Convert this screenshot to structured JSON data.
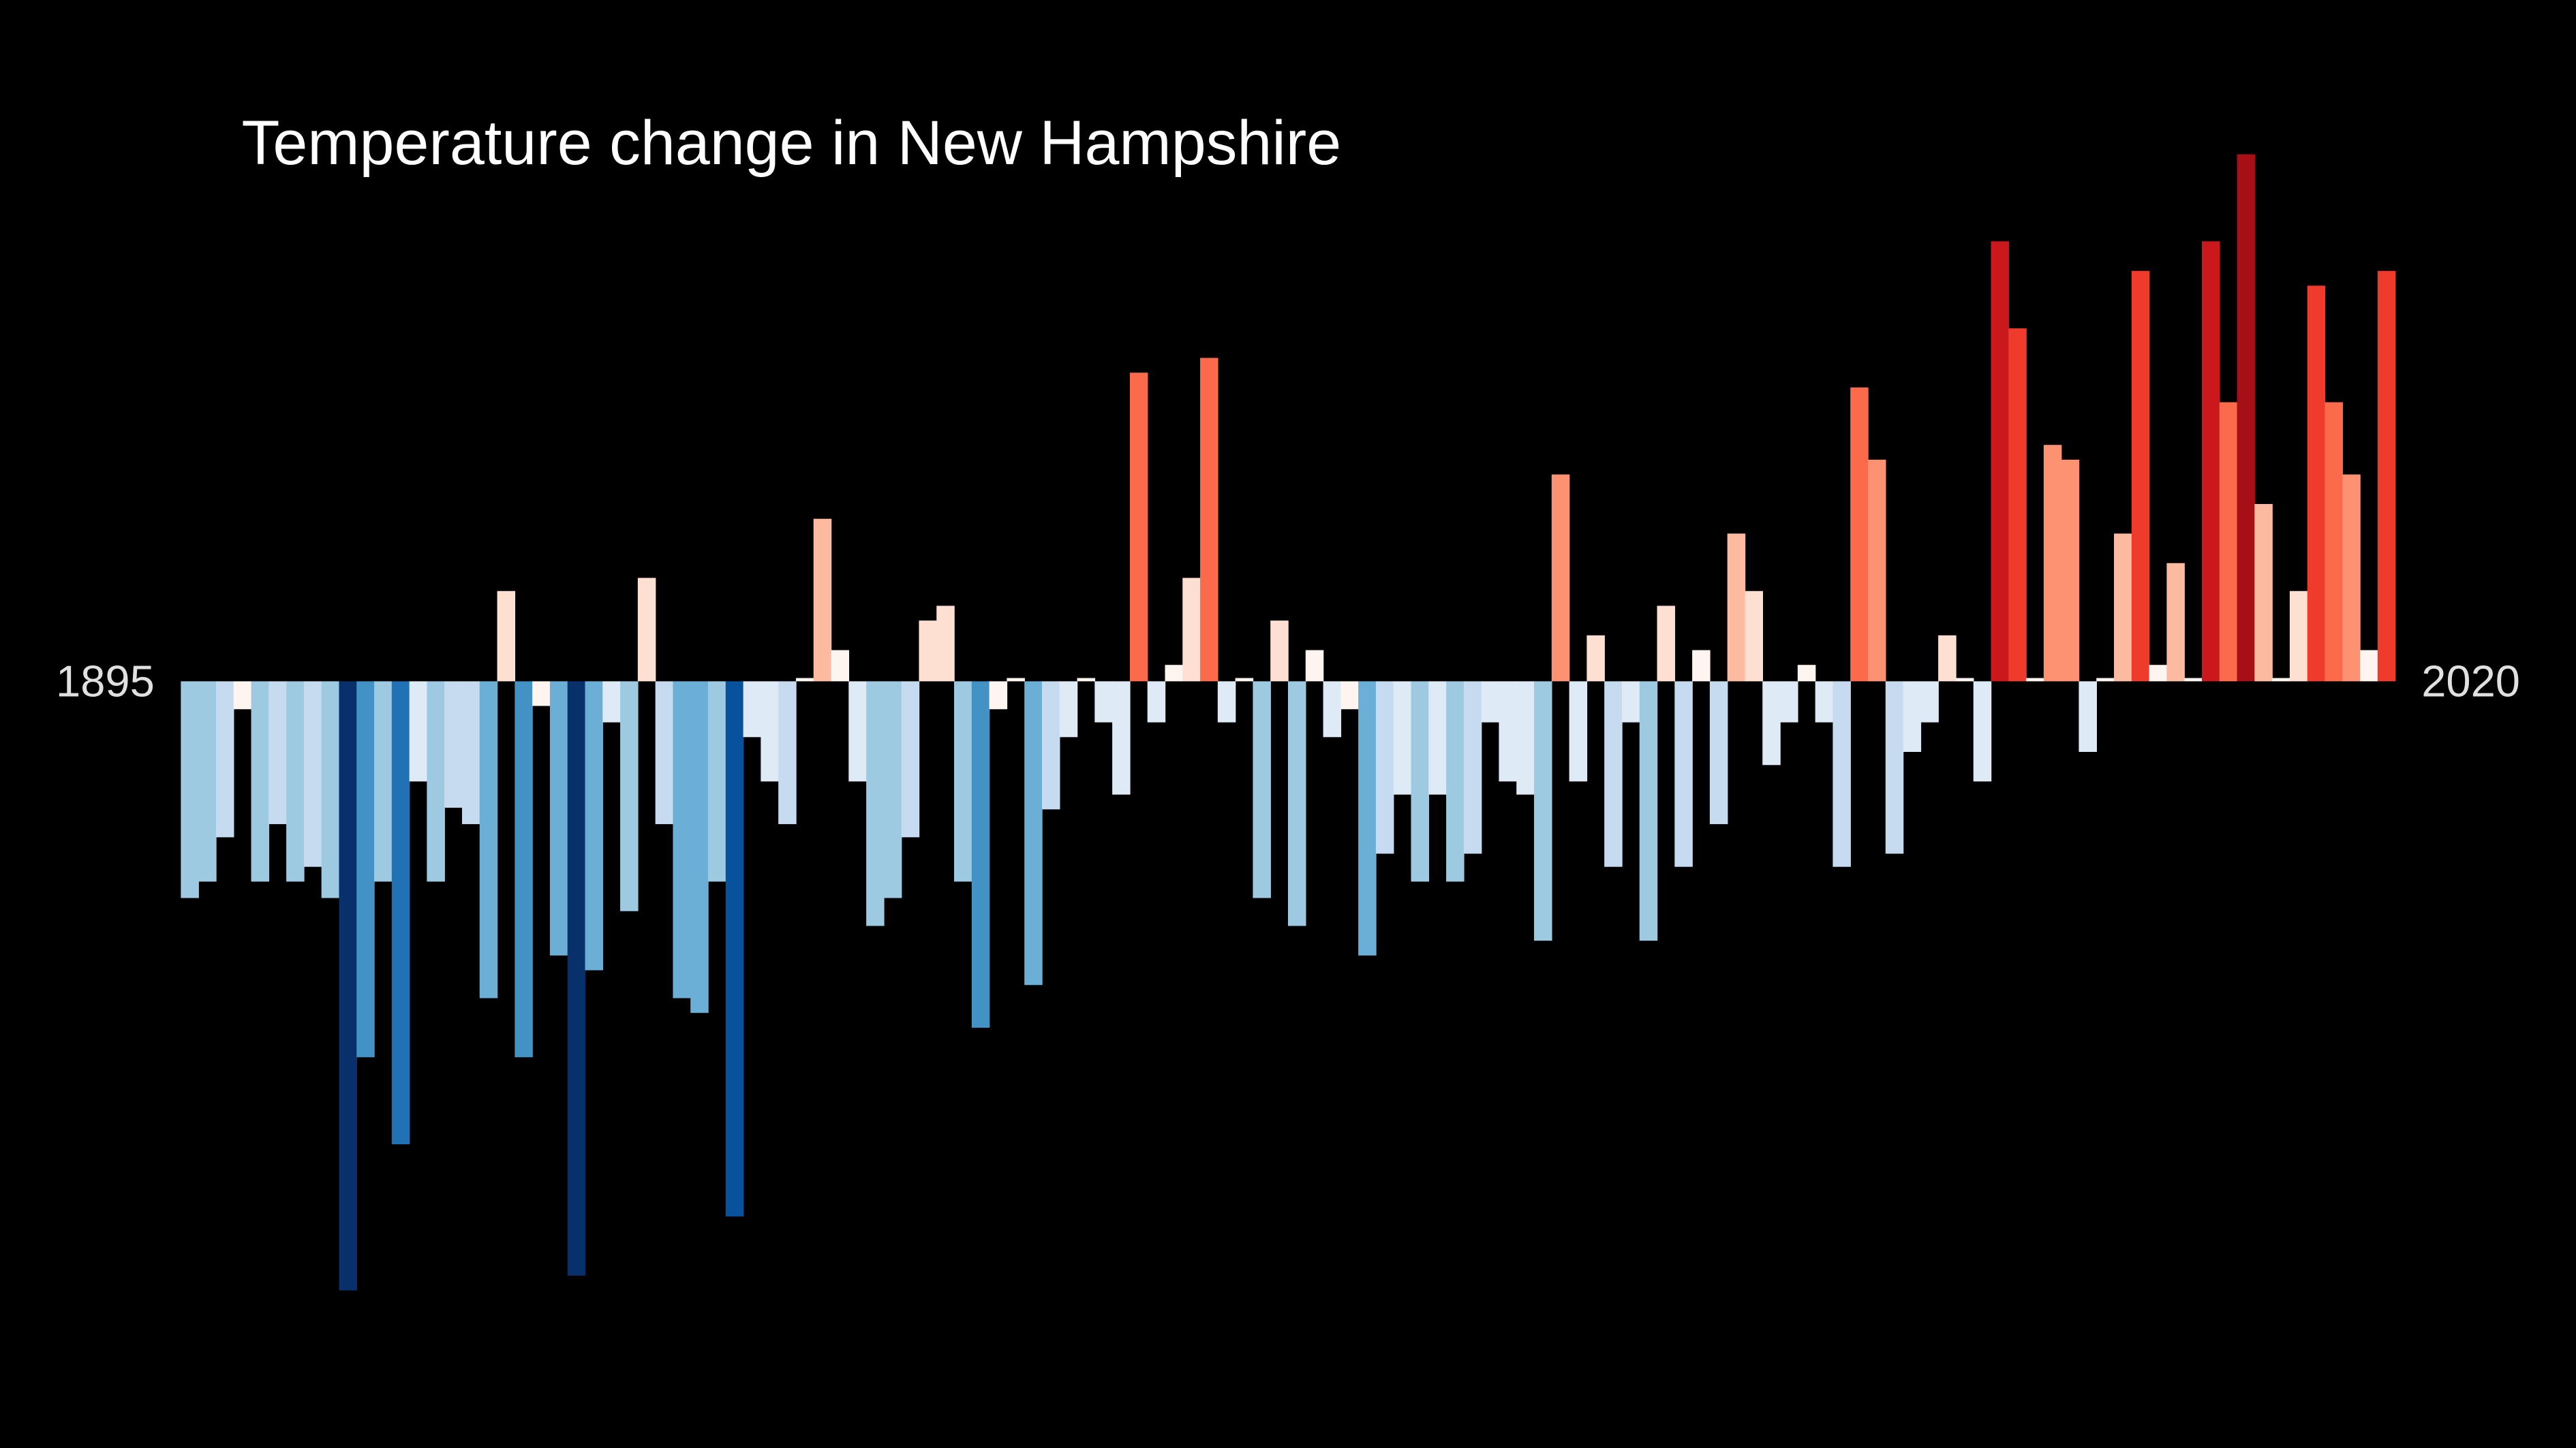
{
  "chart_data": {
    "type": "bar",
    "title": "Temperature change in New Hampshire",
    "categories": [
      "1895",
      null,
      null,
      null,
      null,
      null,
      null,
      null,
      null,
      null,
      null,
      null,
      null,
      null,
      null,
      null,
      null,
      null,
      null,
      null,
      null,
      null,
      null,
      null,
      null,
      null,
      null,
      null,
      null,
      null,
      null,
      null,
      null,
      null,
      null,
      null,
      null,
      null,
      null,
      null,
      null,
      null,
      null,
      null,
      null,
      null,
      null,
      null,
      null,
      null,
      null,
      null,
      null,
      null,
      null,
      null,
      null,
      null,
      null,
      null,
      null,
      null,
      null,
      null,
      null,
      null,
      null,
      null,
      null,
      null,
      null,
      null,
      null,
      null,
      null,
      null,
      null,
      null,
      null,
      null,
      null,
      null,
      null,
      null,
      null,
      null,
      null,
      null,
      null,
      null,
      null,
      null,
      null,
      null,
      null,
      null,
      null,
      null,
      null,
      null,
      null,
      null,
      null,
      null,
      null,
      null,
      null,
      null,
      null,
      null,
      null,
      null,
      null,
      null,
      null,
      null,
      null,
      null,
      null,
      null,
      null,
      null,
      null,
      null,
      null,
      "2020"
    ],
    "values": [
      -1.32,
      -1.22,
      -0.95,
      -0.17,
      -1.22,
      -0.87,
      -1.22,
      -1.13,
      -1.32,
      -3.71,
      -2.29,
      -1.22,
      -2.82,
      -0.61,
      -1.22,
      -0.77,
      -0.87,
      -1.93,
      0.55,
      -2.29,
      -0.15,
      -1.67,
      -3.62,
      -1.76,
      -0.25,
      -1.4,
      0.63,
      -0.87,
      -1.93,
      -2.02,
      -1.22,
      -3.26,
      -0.34,
      -0.61,
      -0.87,
      0.02,
      0.99,
      0.19,
      -0.61,
      -1.49,
      -1.32,
      -0.95,
      0.37,
      0.46,
      -1.22,
      -2.11,
      -0.17,
      0.02,
      -1.85,
      -0.78,
      -0.34,
      0.02,
      -0.25,
      -0.69,
      1.88,
      -0.25,
      0.1,
      0.63,
      1.97,
      -0.25,
      0.02,
      -1.32,
      0.37,
      -1.49,
      0.19,
      -0.34,
      -0.17,
      -1.67,
      -1.05,
      -0.69,
      -1.22,
      -0.69,
      -1.22,
      -1.05,
      -0.25,
      -0.61,
      -0.69,
      -1.58,
      1.26,
      -0.61,
      0.28,
      -1.13,
      -0.25,
      -1.58,
      0.46,
      -1.13,
      0.19,
      -0.87,
      0.9,
      0.55,
      -0.51,
      -0.25,
      0.1,
      -0.25,
      -1.13,
      1.79,
      1.35,
      -1.05,
      -0.43,
      -0.25,
      0.28,
      0.02,
      -0.61,
      2.68,
      2.15,
      0.02,
      1.44,
      1.35,
      -0.43,
      0.02,
      0.9,
      2.5,
      0.1,
      0.72,
      0.02,
      2.68,
      1.7,
      3.21,
      1.08,
      0.02,
      0.55,
      2.41,
      1.7,
      1.26,
      0.19,
      2.5
    ],
    "ylim": [
      -4.67,
      4.15
    ],
    "colormap": [
      "#08306b",
      "#08519c",
      "#2171b5",
      "#4292c6",
      "#6baed6",
      "#9ecae1",
      "#c6dbef",
      "#deebf7",
      "#fff5f0",
      "#fee0d2",
      "#fcbba1",
      "#fc9272",
      "#fb6a4a",
      "#ef3b2c",
      "#cb181d",
      "#a50f15",
      "#67000d"
    ]
  }
}
